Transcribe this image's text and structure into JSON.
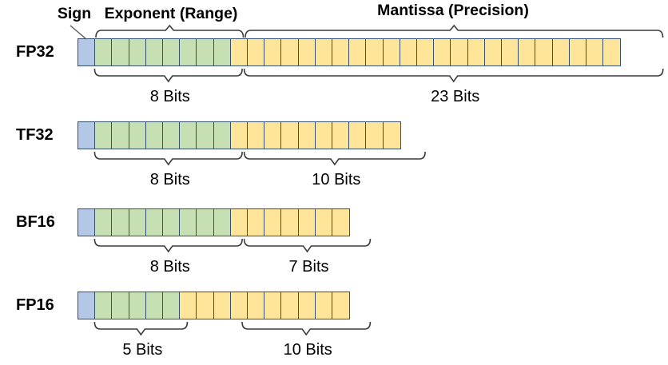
{
  "diagram": {
    "headers": {
      "sign": "Sign",
      "exponent": "Exponent (Range)",
      "mantissa": "Mantissa (Precision)"
    },
    "colors": {
      "background": "#ffffff",
      "sign_fill": "#b4c7e7",
      "exponent_fill": "#c6e0b4",
      "mantissa_fill": "#ffe599",
      "cell_border": "#35506e",
      "brace_stroke": "#3b3b3b",
      "connector_stroke": "#595959",
      "text": "#000000"
    },
    "formats": [
      {
        "name": "FP32",
        "sign_bits": 1,
        "exponent_bits": 8,
        "mantissa_bits": 23,
        "exponent_bits_label": "8 Bits",
        "mantissa_bits_label": "23 Bits"
      },
      {
        "name": "TF32",
        "sign_bits": 1,
        "exponent_bits": 8,
        "mantissa_bits": 10,
        "exponent_bits_label": "8 Bits",
        "mantissa_bits_label": "10 Bits"
      },
      {
        "name": "BF16",
        "sign_bits": 1,
        "exponent_bits": 8,
        "mantissa_bits": 7,
        "exponent_bits_label": "8 Bits",
        "mantissa_bits_label": "7 Bits"
      },
      {
        "name": "FP16",
        "sign_bits": 1,
        "exponent_bits": 5,
        "mantissa_bits": 10,
        "exponent_bits_label": "5 Bits",
        "mantissa_bits_label": "10 Bits"
      }
    ]
  }
}
